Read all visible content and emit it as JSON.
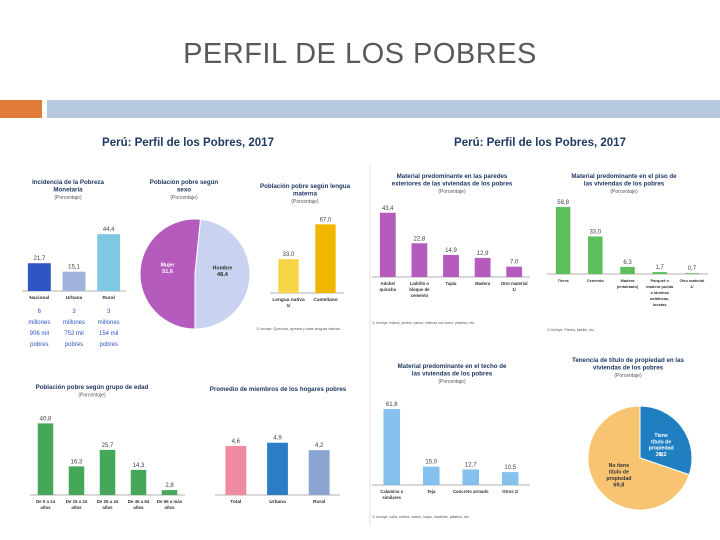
{
  "slide": {
    "title": "PERFIL DE LOS POBRES"
  },
  "left_header": "Perú: Perfil de los Pobres, 2017",
  "right_header": "Perú: Perfil de los Pobres, 2017",
  "colors": {
    "title": "#595959",
    "accent_orange": "#e07b39",
    "accent_blue": "#b7c9de",
    "header": "#1f3864",
    "chart_title": "#1f3864"
  },
  "chart_data": [
    {
      "id": "incidencia",
      "type": "bar",
      "title": "Incidencia de la Pobreza Monetaria",
      "subtitle": "(Porcentaje)",
      "categories": [
        "Nacional",
        "Urbana",
        "Rural"
      ],
      "values": [
        21.7,
        15.1,
        44.4
      ],
      "labels": [
        "21,7",
        "15,1",
        "44,4"
      ],
      "colors": [
        "#2e55c4",
        "#9fb3dc",
        "#7ec8e3"
      ],
      "ylim": [
        0,
        50
      ],
      "notes": [
        "6 millones 906 mil pobres",
        "3 millones 752 mil pobres",
        "3 millones 154 mil pobres"
      ]
    },
    {
      "id": "sexo",
      "type": "pie",
      "title": "Población pobre según sexo",
      "subtitle": "(Porcentaje)",
      "slices": [
        {
          "name": "Mujer",
          "value": 51.6,
          "label": "51,6",
          "color": "#b55bbd"
        },
        {
          "name": "Hombre",
          "value": 48.4,
          "label": "48,4",
          "color": "#c9d2f0"
        }
      ]
    },
    {
      "id": "lengua",
      "type": "bar",
      "title": "Población pobre según lengua materna",
      "subtitle": "(Porcentaje)",
      "categories": [
        "Lengua nativa 1/",
        "Castellano"
      ],
      "values": [
        33.0,
        67.0
      ],
      "labels": [
        "33,0",
        "67,0"
      ],
      "colors": [
        "#f5d547",
        "#f2b600"
      ],
      "ylim": [
        0,
        80
      ],
      "footnote": "1/ Incluye: Quechua, aymara y otras lenguas nativas."
    },
    {
      "id": "paredes",
      "type": "bar",
      "title": "Material predominante en las paredes exteriores de las viviendas de los pobres",
      "subtitle": "(Porcentaje)",
      "categories": [
        "Adobe/ quincha",
        "Ladrillo o bloque de cemento",
        "Tapia",
        "Madera",
        "Otro material 1/"
      ],
      "values": [
        43.4,
        22.8,
        14.9,
        12.9,
        7.0
      ],
      "labels": [
        "43,4",
        "22,8",
        "14,9",
        "12,9",
        "7,0"
      ],
      "colors": [
        "#b55bbd",
        "#b55bbd",
        "#b55bbd",
        "#b55bbd",
        "#b55bbd"
      ],
      "ylim": [
        0,
        50
      ],
      "footnote": "1/ Incluye: estera, piedra, cartón, esteras con barro, plástico, etc."
    },
    {
      "id": "piso",
      "type": "bar",
      "title": "Material predominante en el piso de las viviendas de los pobres",
      "subtitle": "(Porcentaje)",
      "categories": [
        "Tierra",
        "Cemento",
        "Madera (entablado)",
        "Parquet o madera pulida o láminas asfálticas, losetas",
        "Otro material 1/"
      ],
      "values": [
        58.8,
        33.0,
        6.3,
        1.7,
        0.7
      ],
      "labels": [
        "58,8",
        "33,0",
        "6,3",
        "1,7",
        "0,7"
      ],
      "colors": [
        "#5cbf5a",
        "#5cbf5a",
        "#5cbf5a",
        "#5cbf5a",
        "#5cbf5a"
      ],
      "ylim": [
        0,
        65
      ],
      "footnote": "1/ Incluye: Piedra, ladrillo, etc."
    },
    {
      "id": "edad",
      "type": "bar",
      "title": "Población pobre según grupo de edad",
      "subtitle": "(Porcentaje)",
      "categories": [
        "De 0 a 14 años",
        "De 15 a 24 años",
        "De 25 a 44 años",
        "De 45 a 64 años",
        "De 65 a más años"
      ],
      "values": [
        40.8,
        16.3,
        25.7,
        14.3,
        2.8
      ],
      "labels": [
        "40,8",
        "16,3",
        "25,7",
        "14,3",
        "2,8"
      ],
      "colors": [
        "#46a758",
        "#46a758",
        "#46a758",
        "#46a758",
        "#46a758"
      ],
      "ylim": [
        0,
        45
      ]
    },
    {
      "id": "miembros",
      "type": "bar",
      "title": "Promedio de miembros de los hogares pobres",
      "categories": [
        "Total",
        "Urbana",
        "Rural"
      ],
      "values": [
        4.6,
        4.9,
        4.2
      ],
      "labels": [
        "4,6",
        "4,9",
        "4,2"
      ],
      "colors": [
        "#f08aa0",
        "#2b7ec5",
        "#8aa5d0"
      ],
      "ylim": [
        0,
        6
      ]
    },
    {
      "id": "techo",
      "type": "bar",
      "title": "Material predominante en el techo de las viviendas de los pobres",
      "subtitle": "(Porcentaje)",
      "categories": [
        "Calamina o similares",
        "Teja",
        "Concreto armado",
        "Otros 1/"
      ],
      "values": [
        61.8,
        15.0,
        12.7,
        10.5
      ],
      "labels": [
        "61,8",
        "15,0",
        "12,7",
        "10,5"
      ],
      "colors": [
        "#86c0ec",
        "#86c0ec",
        "#86c0ec",
        "#86c0ec"
      ],
      "ylim": [
        0,
        70
      ],
      "footnote": "1/ Incluye: caña, estera, cartón, hojas, maderas, plástico, etc."
    },
    {
      "id": "tenencia",
      "type": "pie",
      "title": "Tenencia de título de propiedad en las viviendas de los pobres",
      "subtitle": "(Porcentaje)",
      "slices": [
        {
          "name": "Tiene título de propiedad 1/",
          "value": 30.2,
          "label": "30,2",
          "color": "#1f7fc1"
        },
        {
          "name": "No tiene título de propiedad",
          "value": 69.8,
          "label": "69,8",
          "color": "#f8c471"
        }
      ]
    }
  ]
}
